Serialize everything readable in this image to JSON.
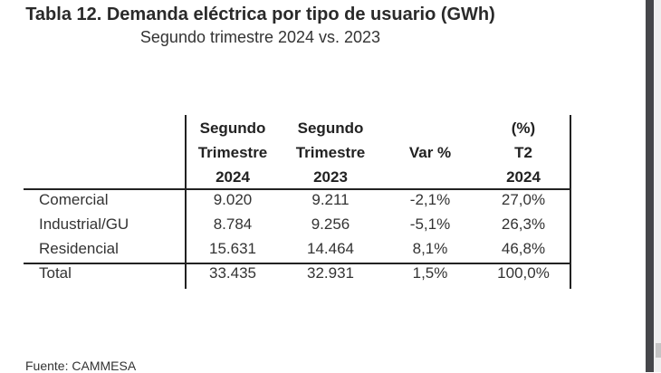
{
  "title": "Tabla 12. Demanda eléctrica por tipo de usuario (GWh)",
  "subtitle": "Segundo trimestre 2024 vs. 2023",
  "table": {
    "headers": [
      [
        "Segundo",
        "Trimestre",
        "2024"
      ],
      [
        "Segundo",
        "Trimestre",
        "2023"
      ],
      [
        "",
        "Var %",
        ""
      ],
      [
        "(%)",
        "T2",
        "2024"
      ]
    ],
    "rows": [
      {
        "label": "Comercial",
        "values": [
          "9.020",
          "9.211",
          "-2,1%",
          "27,0%"
        ]
      },
      {
        "label": "Industrial/GU",
        "values": [
          "8.784",
          "9.256",
          "-5,1%",
          "26,3%"
        ]
      },
      {
        "label": "Residencial",
        "values": [
          "15.631",
          "14.464",
          "8,1%",
          "46,8%"
        ]
      },
      {
        "label": "Total",
        "values": [
          "33.435",
          "32.931",
          "1,5%",
          "100,0%"
        ]
      }
    ]
  },
  "source": "Fuente: CAMMESA"
}
